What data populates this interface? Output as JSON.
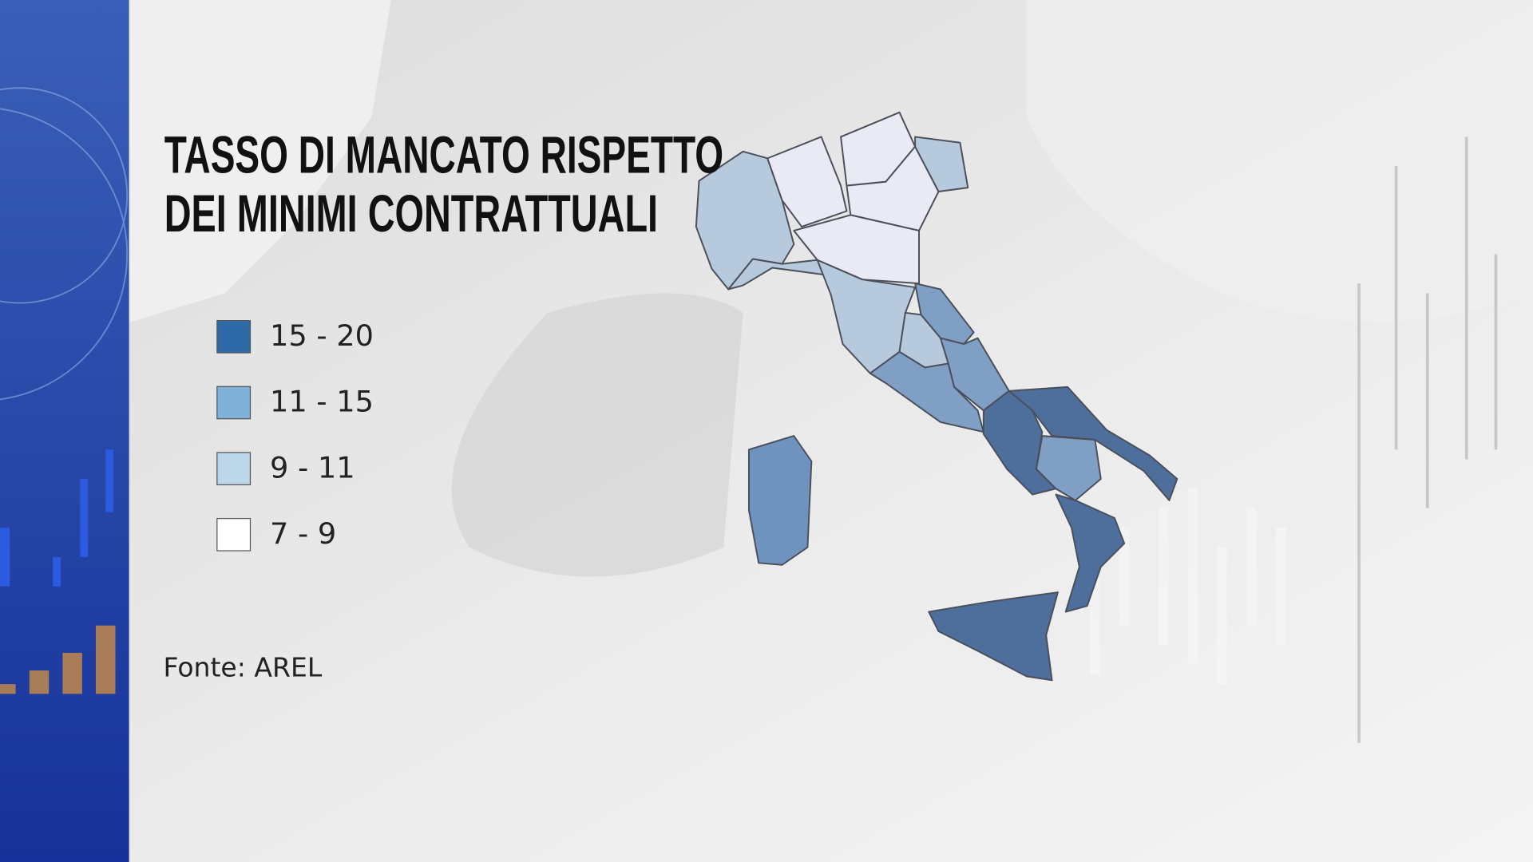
{
  "title_lines": [
    "TASSO DI MANCATO RISPETTO",
    "DEI MINIMI CONTRATTUALI"
  ],
  "legend": [
    {
      "label": "15 - 20",
      "color": "#2f6aa8"
    },
    {
      "label": "11 - 15",
      "color": "#7eb0d8"
    },
    {
      "label": "9 - 11",
      "color": "#bcd6ea"
    },
    {
      "label": "7 - 9",
      "color": "#ffffff"
    }
  ],
  "source": "Fonte:  AREL"
}
